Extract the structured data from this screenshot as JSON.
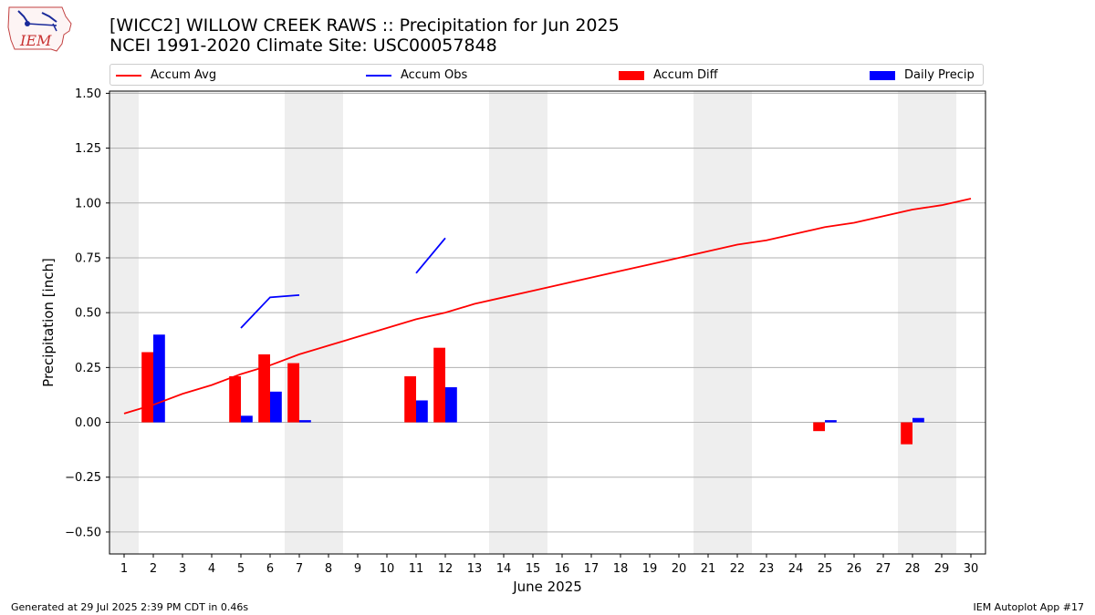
{
  "header": {
    "title_line1": "[WICC2] WILLOW CREEK RAWS :: Precipitation for Jun 2025",
    "title_line2": "NCEI 1991-2020 Climate Site: USC00057848",
    "logo_text": "IEM"
  },
  "footer": {
    "generated": "Generated at 29 Jul 2025 2:39 PM CDT in 0.46s",
    "app": "IEM Autoplot App #17"
  },
  "colors": {
    "avg": "#ff0000",
    "obs": "#0000ff",
    "diff": "#ff0000",
    "daily": "#0000ff",
    "weekend_shade": "#eeeeee",
    "grid": "#b0b0b0"
  },
  "chart_data": {
    "type": "bar",
    "title": "[WICC2] WILLOW CREEK RAWS :: Precipitation for Jun 2025",
    "subtitle": "NCEI 1991-2020 Climate Site: USC00057848",
    "xlabel": "June 2025",
    "ylabel": "Precipitation [inch]",
    "xlim": [
      0.5,
      30.5
    ],
    "ylim": [
      -0.6,
      1.51
    ],
    "x_ticks": [
      1,
      2,
      3,
      4,
      5,
      6,
      7,
      8,
      9,
      10,
      11,
      12,
      13,
      14,
      15,
      16,
      17,
      18,
      19,
      20,
      21,
      22,
      23,
      24,
      25,
      26,
      27,
      28,
      29,
      30
    ],
    "y_ticks": [
      -0.5,
      -0.25,
      0.0,
      0.25,
      0.5,
      0.75,
      1.0,
      1.25,
      1.5
    ],
    "y_tick_labels": [
      "−0.50",
      "−0.25",
      "0.00",
      "0.25",
      "0.50",
      "0.75",
      "1.00",
      "1.25",
      "1.50"
    ],
    "grid": "horizontal",
    "legend": {
      "placement": "top",
      "entries": [
        "Accum Avg",
        "Accum Obs",
        "Accum Diff",
        "Daily Precip"
      ]
    },
    "weekend_days": [
      1,
      7,
      8,
      14,
      15,
      21,
      22,
      28,
      29
    ],
    "series": [
      {
        "name": "Accum Avg",
        "kind": "line",
        "x": [
          1,
          2,
          3,
          4,
          5,
          6,
          7,
          8,
          9,
          10,
          11,
          12,
          13,
          14,
          15,
          16,
          17,
          18,
          19,
          20,
          21,
          22,
          23,
          24,
          25,
          26,
          27,
          28,
          29,
          30
        ],
        "values": [
          0.04,
          0.08,
          0.13,
          0.17,
          0.22,
          0.26,
          0.31,
          0.35,
          0.39,
          0.43,
          0.47,
          0.5,
          0.54,
          0.57,
          0.6,
          0.63,
          0.66,
          0.69,
          0.72,
          0.75,
          0.78,
          0.81,
          0.83,
          0.86,
          0.89,
          0.91,
          0.94,
          0.97,
          0.99,
          1.02
        ]
      },
      {
        "name": "Accum Obs",
        "kind": "line",
        "segments": [
          {
            "x": [
              5,
              6,
              7
            ],
            "values": [
              0.43,
              0.57,
              0.58
            ]
          },
          {
            "x": [
              11,
              12
            ],
            "values": [
              0.68,
              0.84
            ]
          }
        ]
      },
      {
        "name": "Accum Diff",
        "kind": "bar",
        "x": [
          2,
          5,
          6,
          7,
          11,
          12,
          25,
          28
        ],
        "values": [
          0.32,
          0.21,
          0.31,
          0.27,
          0.21,
          0.34,
          -0.04,
          -0.1
        ]
      },
      {
        "name": "Daily Precip",
        "kind": "bar",
        "x": [
          2,
          5,
          6,
          7,
          11,
          12,
          25,
          28
        ],
        "values": [
          0.4,
          0.03,
          0.14,
          0.01,
          0.1,
          0.16,
          0.01,
          0.02
        ]
      }
    ]
  }
}
